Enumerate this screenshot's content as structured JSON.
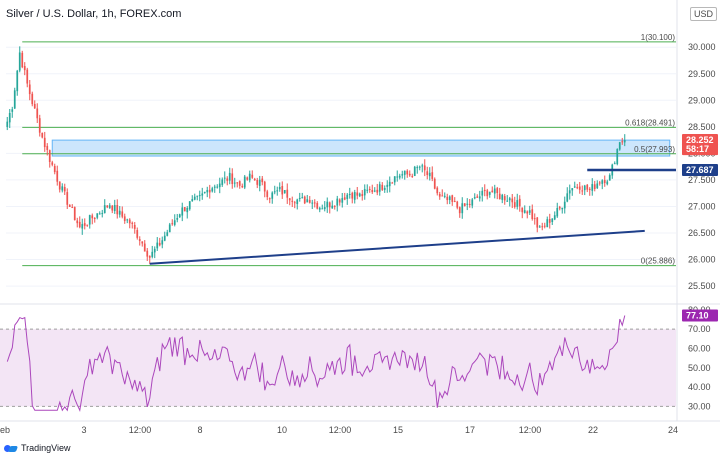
{
  "header": {
    "title": "Silver / U.S. Dollar, 1h, FOREX.com",
    "currency": "USD"
  },
  "footer": {
    "brand": "TradingView"
  },
  "colors": {
    "candle_up": "#26a69a",
    "candle_down": "#ef5350",
    "fib_line": "#4caf50",
    "zone_fill": "#bbdefb",
    "trendline": "#1e3f8a",
    "rsi_line": "#ab47bc",
    "rsi_band": "#f3e5f5",
    "price_tag": "#ef5350",
    "level_tag": "#1e3f8a",
    "rsi_tag": "#9c27b0"
  },
  "chart_data": [
    {
      "type": "candlestick",
      "title": "Silver / U.S. Dollar, 1h, FOREX.com",
      "x_tick_labels": [
        "eb",
        "3",
        "12:00",
        "8",
        "10",
        "12:00",
        "15",
        "17",
        "12:00",
        "22",
        "24"
      ],
      "y_tick_labels": [
        "30.000",
        "29.500",
        "29.000",
        "28.500",
        "28.000",
        "27.500",
        "27.000",
        "26.500",
        "26.000",
        "25.500"
      ],
      "ylim": [
        25.2,
        30.4
      ],
      "close_path": [
        [
          0,
          28.6
        ],
        [
          2,
          28.9
        ],
        [
          5,
          29.9
        ],
        [
          8,
          29.3
        ],
        [
          11,
          28.8
        ],
        [
          14,
          28.3
        ],
        [
          17,
          27.9
        ],
        [
          21,
          27.4
        ],
        [
          25,
          27.0
        ],
        [
          29,
          26.6
        ],
        [
          33,
          26.75
        ],
        [
          37,
          26.9
        ],
        [
          41,
          27.05
        ],
        [
          45,
          26.85
        ],
        [
          49,
          26.7
        ],
        [
          53,
          26.4
        ],
        [
          57,
          26.05
        ],
        [
          61,
          26.3
        ],
        [
          65,
          26.6
        ],
        [
          69,
          26.9
        ],
        [
          73,
          27.05
        ],
        [
          77,
          27.15
        ],
        [
          81,
          27.35
        ],
        [
          85,
          27.45
        ],
        [
          89,
          27.55
        ],
        [
          93,
          27.4
        ],
        [
          97,
          27.55
        ],
        [
          101,
          27.45
        ],
        [
          105,
          27.2
        ],
        [
          109,
          27.3
        ],
        [
          113,
          27.2
        ],
        [
          117,
          27.1
        ],
        [
          121,
          27.15
        ],
        [
          125,
          27.0
        ],
        [
          129,
          27.05
        ],
        [
          133,
          27.15
        ],
        [
          137,
          27.25
        ],
        [
          141,
          27.2
        ],
        [
          145,
          27.3
        ],
        [
          149,
          27.35
        ],
        [
          153,
          27.5
        ],
        [
          157,
          27.6
        ],
        [
          161,
          27.6
        ],
        [
          165,
          27.75
        ],
        [
          169,
          27.55
        ],
        [
          173,
          27.15
        ],
        [
          177,
          27.1
        ],
        [
          181,
          26.95
        ],
        [
          185,
          27.05
        ],
        [
          189,
          27.2
        ],
        [
          193,
          27.3
        ],
        [
          197,
          27.2
        ],
        [
          201,
          27.15
        ],
        [
          205,
          27.0
        ],
        [
          209,
          26.9
        ],
        [
          213,
          26.55
        ],
        [
          217,
          26.75
        ],
        [
          221,
          26.95
        ],
        [
          225,
          27.35
        ],
        [
          229,
          27.4
        ],
        [
          233,
          27.3
        ],
        [
          237,
          27.5
        ],
        [
          241,
          27.55
        ],
        [
          245,
          28.25
        ]
      ],
      "fib_levels": [
        {
          "label": "1(30.100)",
          "value": 30.1
        },
        {
          "label": "0.618(28.491)",
          "value": 28.491
        },
        {
          "label": "0.5(27.993)",
          "value": 27.993
        },
        {
          "label": "0(25.886)",
          "value": 25.886
        }
      ],
      "resistance_zone": [
        27.95,
        28.25
      ],
      "trendline": {
        "from": [
          57,
          25.92
        ],
        "to": [
          255,
          26.54
        ]
      },
      "horizontal_level": {
        "value": 27.687,
        "from": 232,
        "to": 262
      },
      "price_tags": [
        {
          "label": "28.252",
          "value": 28.252,
          "role": "price"
        },
        {
          "label": "58:17",
          "value": 28.08,
          "role": "countdown"
        },
        {
          "label": "27.687",
          "value": 27.687,
          "role": "level"
        }
      ]
    },
    {
      "type": "line",
      "title": "",
      "y_tick_labels": [
        "80.00",
        "70.00",
        "60.00",
        "50.00",
        "40.00",
        "30.00"
      ],
      "ylim": [
        24,
        82
      ],
      "band": [
        30,
        70
      ],
      "last_value_label": "77.10",
      "last_value": 77.1
    }
  ]
}
